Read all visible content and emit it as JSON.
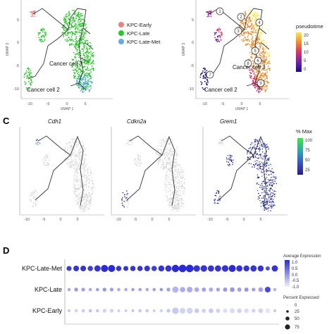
{
  "panels": {
    "C": "C",
    "D": "D"
  },
  "umap": {
    "xlabel": "UMAP 1",
    "ylabel": "UMAP 2",
    "x_ticks": [
      "-10",
      "-5",
      "0",
      "5"
    ],
    "y_ticks": [
      "5",
      "0",
      "-5",
      "-10"
    ],
    "cluster_labels": [
      "Cancer cell 3",
      "Cancer cell 2"
    ]
  },
  "panelA": {
    "legend": [
      {
        "label": "KPC-Early",
        "color": "#f08080"
      },
      {
        "label": "KPC-Late",
        "color": "#22cc22"
      },
      {
        "label": "KPC-Late-Met",
        "color": "#66aaee"
      }
    ]
  },
  "panelB": {
    "legend_title": "pseudotime",
    "legend_ticks": [
      "20",
      "15",
      "10",
      "5",
      "0"
    ],
    "nodes": [
      "1",
      "2",
      "3",
      "4",
      "5",
      "6",
      "7",
      "8",
      "9"
    ]
  },
  "panelC": {
    "genes": [
      "Cdh1",
      "Cdkn2a",
      "Grem1"
    ],
    "legend_title": "% Max",
    "legend_ticks": [
      "100",
      "75",
      "50",
      "25"
    ]
  },
  "panelD": {
    "legend_avg_title": "Average Expression",
    "legend_avg_ticks": [
      "1.0",
      "0.5",
      "0.0",
      "-0.5",
      "-1.0"
    ],
    "legend_pct_title": "Percent Expressed",
    "legend_pct_ticks": [
      "0",
      "25",
      "50",
      "75"
    ]
  },
  "chart_data": [
    {
      "type": "scatter",
      "panel": "A",
      "xlabel": "UMAP 1",
      "ylabel": "UMAP 2",
      "xlim": [
        -13,
        7
      ],
      "ylim": [
        -12,
        9
      ],
      "series": [
        {
          "name": "KPC-Early",
          "color": "#f08080"
        },
        {
          "name": "KPC-Late",
          "color": "#22cc22"
        },
        {
          "name": "KPC-Late-Met",
          "color": "#66aaee"
        }
      ]
    },
    {
      "type": "scatter",
      "panel": "B",
      "xlabel": "UMAP 1",
      "ylabel": "UMAP 2",
      "color_scale": "pseudotime",
      "range": [
        0,
        20
      ]
    },
    {
      "type": "heatmap",
      "panel": "D",
      "rows": [
        "KPC-Late-Met",
        "KPC-Late",
        "KPC-Early"
      ],
      "n_genes": 30,
      "avg_expression": [
        [
          0.8,
          0.9,
          0.9,
          0.8,
          0.9,
          1.0,
          1.0,
          0.9,
          0.9,
          0.9,
          0.9,
          0.9,
          0.8,
          0.9,
          0.9,
          1.0,
          1.0,
          1.0,
          0.9,
          0.9,
          0.9,
          0.9,
          0.9,
          1.0,
          0.9,
          0.9,
          0.9,
          0.9,
          0.6,
          0.9
        ],
        [
          -0.3,
          -0.1,
          -0.2,
          -0.3,
          -0.2,
          -0.1,
          -0.2,
          -0.3,
          -0.3,
          -0.2,
          -0.2,
          -0.3,
          -0.2,
          -0.1,
          -0.2,
          -0.4,
          -0.3,
          -0.3,
          -0.3,
          -0.2,
          -0.3,
          -0.2,
          -0.1,
          -0.1,
          -0.2,
          -0.1,
          -0.2,
          -0.2,
          0.7,
          -0.4
        ],
        [
          -0.5,
          -0.7,
          -0.6,
          -0.5,
          -0.6,
          -0.7,
          -0.7,
          -0.6,
          -0.6,
          -0.5,
          -0.6,
          -0.6,
          -0.6,
          -0.7,
          -0.6,
          -0.6,
          -0.7,
          -0.7,
          -0.6,
          -0.7,
          -0.6,
          -0.7,
          -0.8,
          -0.8,
          -0.7,
          -0.8,
          -0.7,
          -0.7,
          -0.9,
          -0.5
        ]
      ],
      "pct_expressed": [
        [
          35,
          45,
          45,
          40,
          55,
          70,
          70,
          40,
          35,
          40,
          40,
          45,
          40,
          50,
          55,
          75,
          80,
          80,
          60,
          60,
          55,
          55,
          60,
          70,
          55,
          50,
          55,
          50,
          25,
          55
        ],
        [
          15,
          20,
          20,
          15,
          15,
          20,
          20,
          15,
          15,
          15,
          15,
          15,
          15,
          15,
          20,
          55,
          40,
          45,
          30,
          25,
          25,
          20,
          25,
          30,
          25,
          25,
          20,
          30,
          45,
          15
        ],
        [
          10,
          15,
          15,
          15,
          15,
          20,
          20,
          10,
          10,
          10,
          15,
          15,
          10,
          15,
          20,
          60,
          45,
          50,
          30,
          25,
          30,
          25,
          25,
          35,
          30,
          30,
          20,
          30,
          35,
          10
        ]
      ]
    }
  ]
}
